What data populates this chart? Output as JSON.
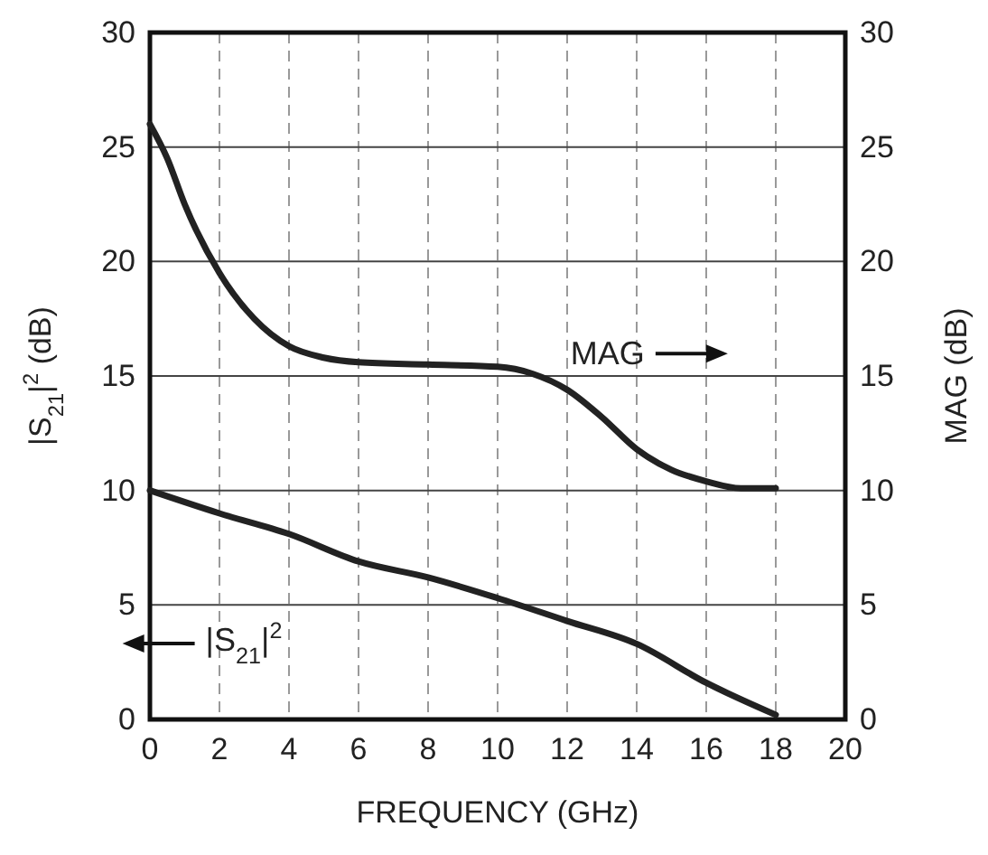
{
  "chart_data": {
    "type": "line",
    "xlabel": "FREQUENCY (GHz)",
    "ylabel": "|S$_{21}$|$^{2}$ (dB)",
    "y2label": "MAG (dB)",
    "xlim": [
      0,
      20
    ],
    "xticks": [
      0,
      2,
      4,
      6,
      8,
      10,
      12,
      14,
      16,
      18,
      20
    ],
    "ylim": [
      0,
      30
    ],
    "yticks": [
      0,
      5,
      10,
      15,
      20,
      25,
      30
    ],
    "y2lim": [
      0,
      30
    ],
    "y2ticks": [
      0,
      5,
      10,
      15,
      20,
      25,
      30
    ],
    "grid": true,
    "marker": "none",
    "line_style": "solid",
    "series": [
      {
        "name": "MAG",
        "color": "#222222",
        "axis": "y2",
        "x": [
          0,
          0.5,
          1,
          2,
          3,
          4,
          5,
          6,
          8,
          10,
          11,
          12,
          13,
          14,
          15,
          16,
          17,
          18
        ],
        "values": [
          26,
          24.5,
          22.5,
          19.5,
          17.5,
          16.3,
          15.8,
          15.6,
          15.5,
          15.4,
          15.1,
          14.4,
          13.2,
          11.8,
          10.9,
          10.4,
          10.1,
          10.1
        ]
      },
      {
        "name": "|S$_{21}$|$^{2}$",
        "color": "#222222",
        "axis": "y",
        "x": [
          0,
          2,
          4,
          6,
          8,
          10,
          12,
          14,
          16,
          18
        ],
        "values": [
          10,
          9,
          8.1,
          6.9,
          6.2,
          5.3,
          4.3,
          3.3,
          1.6,
          0.2
        ]
      }
    ]
  }
}
